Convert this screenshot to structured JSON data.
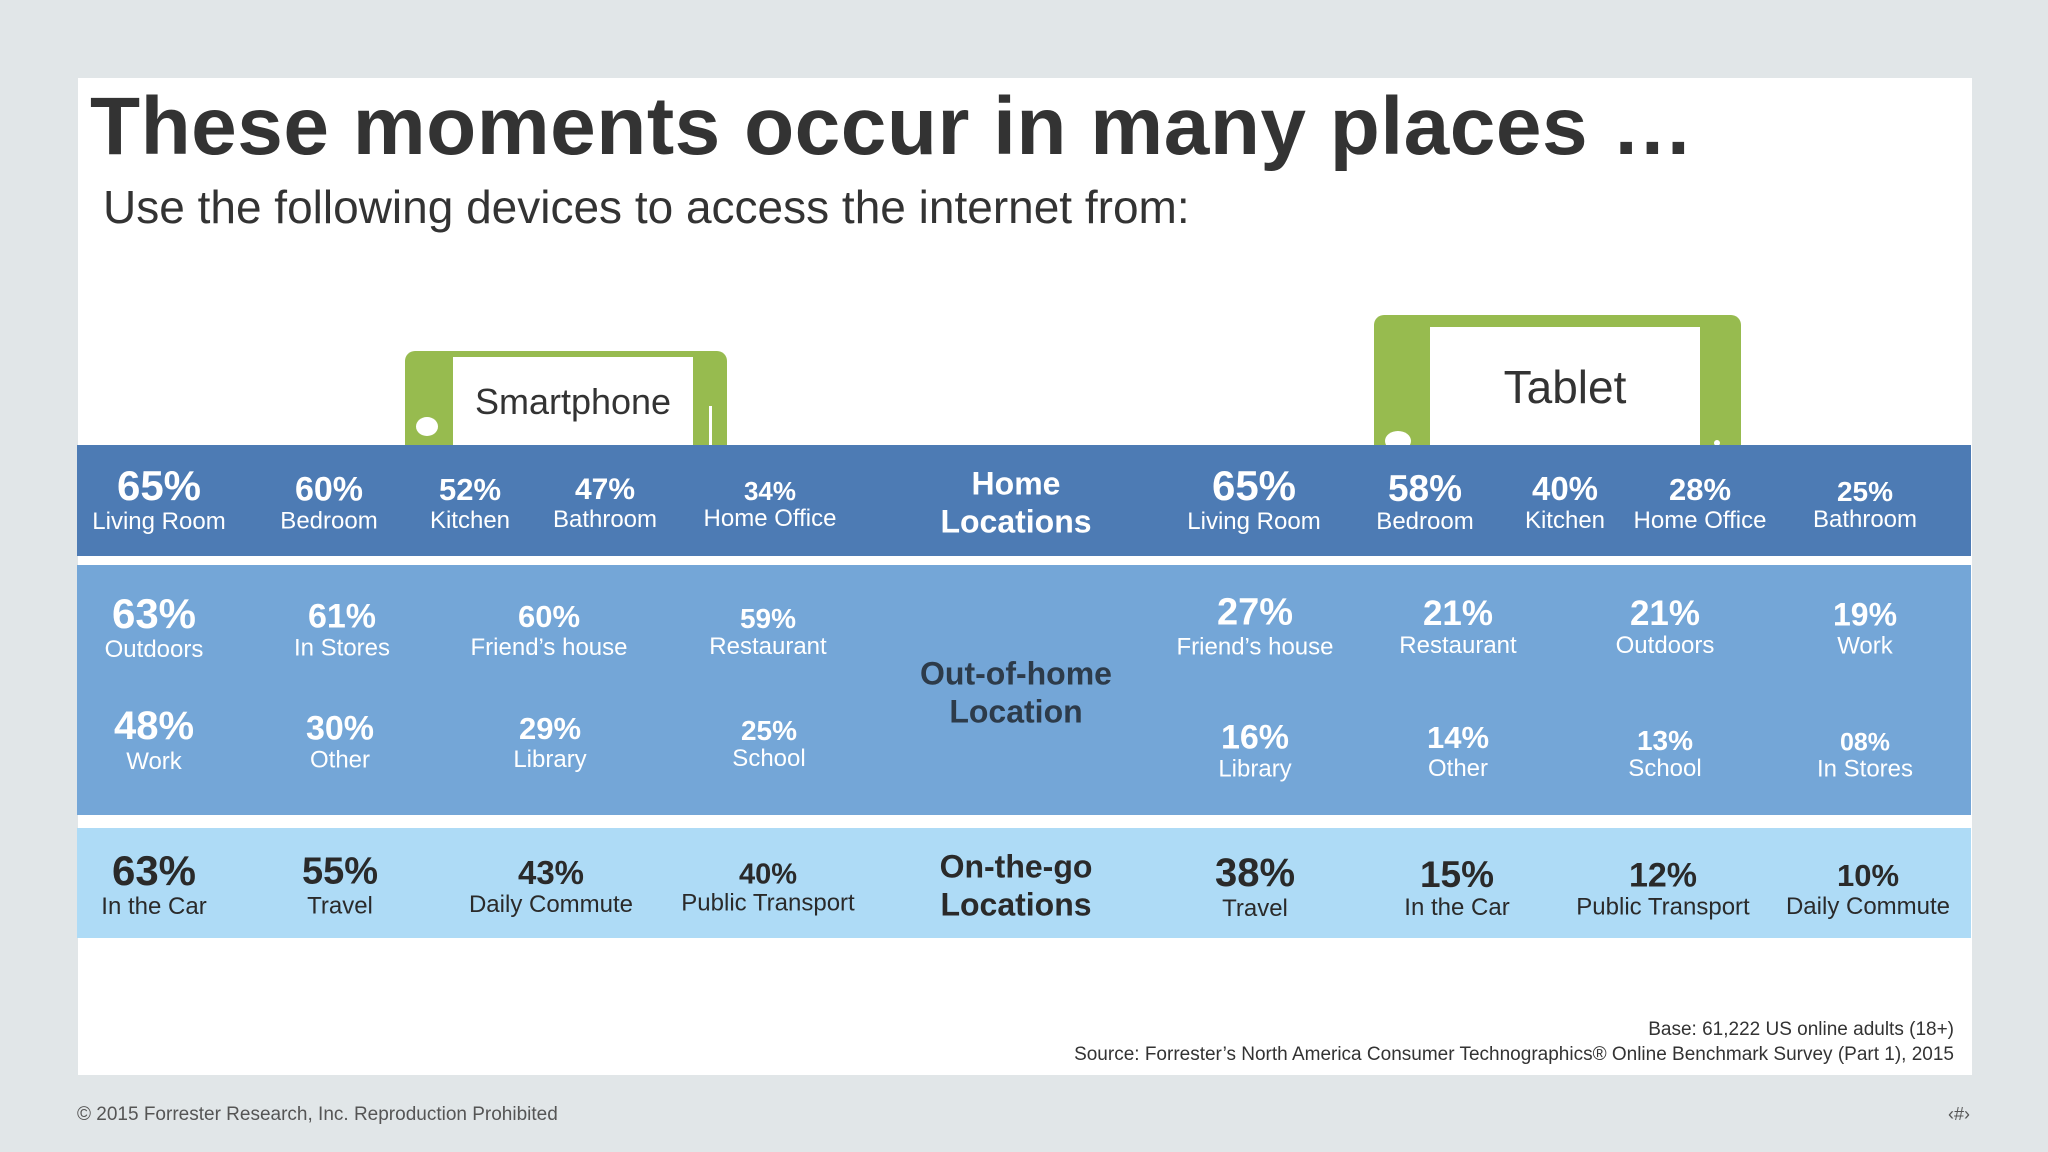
{
  "title": "These moments occur in many places …",
  "subtitle": "Use the following devices to access the internet from:",
  "devices": {
    "smartphone": "Smartphone",
    "tablet": "Tablet"
  },
  "colors": {
    "device_green": "#97bb4f",
    "home_band": "#4d7bb4",
    "out_band": "#74a6d7",
    "go_band": "#aedbf6"
  },
  "home": {
    "heading": "Home\nLocations",
    "smartphone": [
      {
        "pct": "65%",
        "label": "Living Room"
      },
      {
        "pct": "60%",
        "label": "Bedroom"
      },
      {
        "pct": "52%",
        "label": "Kitchen"
      },
      {
        "pct": "47%",
        "label": "Bathroom"
      },
      {
        "pct": "34%",
        "label": "Home Office"
      }
    ],
    "tablet": [
      {
        "pct": "65%",
        "label": "Living Room"
      },
      {
        "pct": "58%",
        "label": "Bedroom"
      },
      {
        "pct": "40%",
        "label": "Kitchen"
      },
      {
        "pct": "28%",
        "label": "Home Office"
      },
      {
        "pct": "25%",
        "label": "Bathroom"
      }
    ]
  },
  "out_of_home": {
    "heading": "Out-of-home\nLocation",
    "smartphone": [
      {
        "pct": "63%",
        "label": "Outdoors"
      },
      {
        "pct": "61%",
        "label": "In Stores"
      },
      {
        "pct": "60%",
        "label": "Friend’s house"
      },
      {
        "pct": "59%",
        "label": "Restaurant"
      },
      {
        "pct": "48%",
        "label": "Work"
      },
      {
        "pct": "30%",
        "label": "Other"
      },
      {
        "pct": "29%",
        "label": "Library"
      },
      {
        "pct": "25%",
        "label": "School"
      }
    ],
    "tablet": [
      {
        "pct": "27%",
        "label": "Friend’s house"
      },
      {
        "pct": "21%",
        "label": "Restaurant"
      },
      {
        "pct": "21%",
        "label": "Outdoors"
      },
      {
        "pct": "19%",
        "label": "Work"
      },
      {
        "pct": "16%",
        "label": "Library"
      },
      {
        "pct": "14%",
        "label": "Other"
      },
      {
        "pct": "13%",
        "label": "School"
      },
      {
        "pct": "08%",
        "label": "In Stores"
      }
    ]
  },
  "on_the_go": {
    "heading": "On-the-go\nLocations",
    "smartphone": [
      {
        "pct": "63%",
        "label": "In the Car"
      },
      {
        "pct": "55%",
        "label": "Travel"
      },
      {
        "pct": "43%",
        "label": "Daily Commute"
      },
      {
        "pct": "40%",
        "label": "Public Transport"
      }
    ],
    "tablet": [
      {
        "pct": "38%",
        "label": "Travel"
      },
      {
        "pct": "15%",
        "label": "In the Car"
      },
      {
        "pct": "12%",
        "label": "Public Transport"
      },
      {
        "pct": "10%",
        "label": "Daily Commute"
      }
    ]
  },
  "base": "Base: 61,222 US online adults (18+)",
  "source": "Source: Forrester’s North America Consumer Technographics® Online Benchmark Survey (Part 1), 2015",
  "footer": "© 2015 Forrester Research, Inc. Reproduction Prohibited",
  "page_number": "‹#›"
}
